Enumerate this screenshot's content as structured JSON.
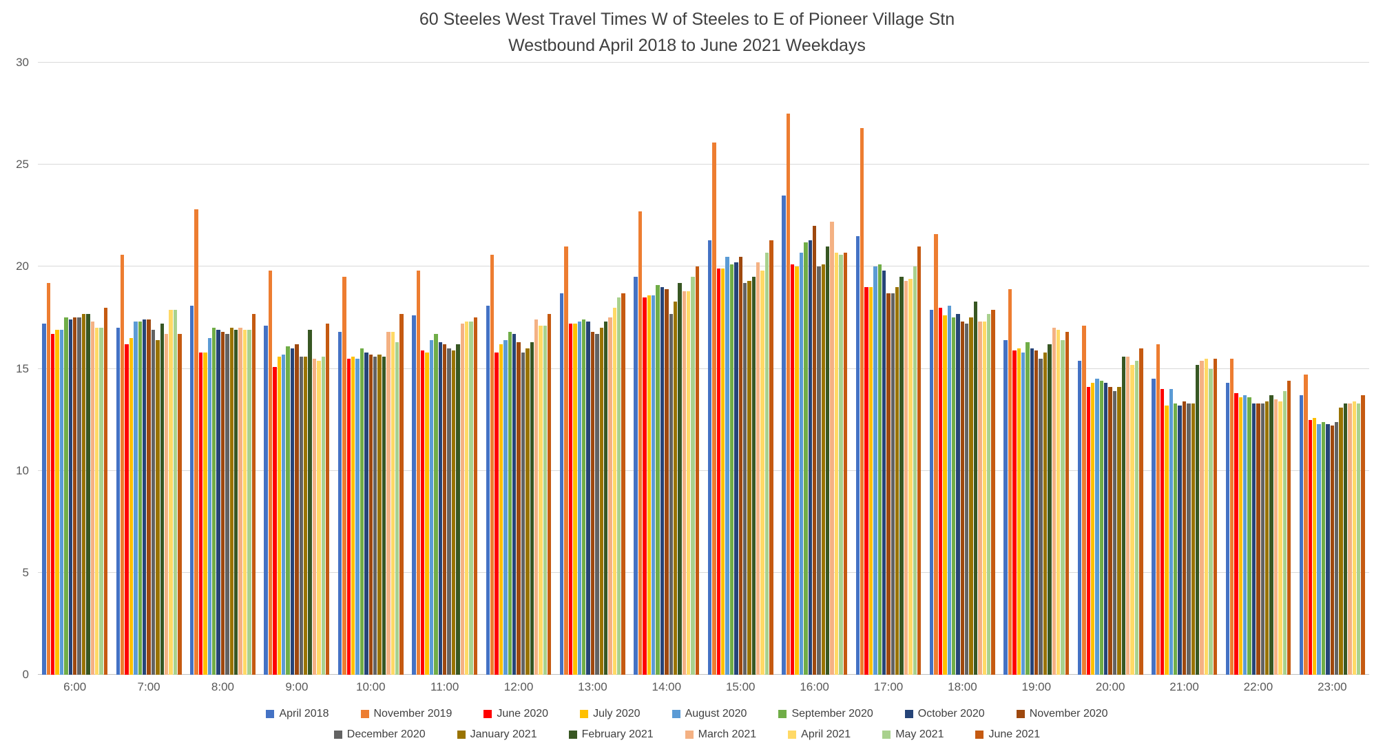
{
  "title": {
    "line1": "60 Steeles West Travel Times W of Steeles to E of Pioneer Village Stn",
    "line2": "Westbound April 2018 to June 2021 Weekdays"
  },
  "chart_data": {
    "type": "bar",
    "title": "60 Steeles West Travel Times W of Steeles to E of Pioneer Village Stn Westbound April 2018 to June 2021 Weekdays",
    "xlabel": "",
    "ylabel": "",
    "ylim": [
      0,
      30
    ],
    "ytick_step": 5,
    "grid": true,
    "legend_position": "bottom",
    "legend_rows": [
      8,
      7
    ],
    "categories": [
      "6:00",
      "7:00",
      "8:00",
      "9:00",
      "10:00",
      "11:00",
      "12:00",
      "13:00",
      "14:00",
      "15:00",
      "16:00",
      "17:00",
      "18:00",
      "19:00",
      "20:00",
      "21:00",
      "22:00",
      "23:00"
    ],
    "series": [
      {
        "name": "April 2018",
        "color": "#4472C4",
        "values": [
          17.2,
          17.0,
          18.1,
          17.1,
          16.8,
          17.6,
          18.1,
          18.7,
          19.5,
          21.3,
          23.5,
          21.5,
          17.9,
          16.4,
          15.4,
          14.5,
          14.3,
          13.7
        ]
      },
      {
        "name": "November 2019",
        "color": "#ED7D31",
        "values": [
          19.2,
          20.6,
          22.8,
          19.8,
          19.5,
          19.8,
          20.6,
          21.0,
          22.7,
          26.1,
          27.5,
          26.8,
          21.6,
          18.9,
          17.1,
          16.2,
          15.5,
          14.7
        ]
      },
      {
        "name": "June 2020",
        "color": "#FF0000",
        "values": [
          16.7,
          16.2,
          15.8,
          15.1,
          15.5,
          15.9,
          15.8,
          17.2,
          18.5,
          19.9,
          20.1,
          19.0,
          18.0,
          15.9,
          14.1,
          14.0,
          13.8,
          12.5
        ]
      },
      {
        "name": "July 2020",
        "color": "#FFC000",
        "values": [
          16.9,
          16.5,
          15.8,
          15.6,
          15.6,
          15.8,
          16.2,
          17.2,
          18.6,
          19.9,
          20.0,
          19.0,
          17.6,
          16.0,
          14.3,
          13.2,
          13.6,
          12.6
        ]
      },
      {
        "name": "August 2020",
        "color": "#5B9BD5",
        "values": [
          16.9,
          17.3,
          16.5,
          15.7,
          15.5,
          16.4,
          16.4,
          17.3,
          18.6,
          20.5,
          20.7,
          20.0,
          18.1,
          15.8,
          14.5,
          14.0,
          13.7,
          12.3
        ]
      },
      {
        "name": "September 2020",
        "color": "#70AD47",
        "values": [
          17.5,
          17.3,
          17.0,
          16.1,
          16.0,
          16.7,
          16.8,
          17.4,
          19.1,
          20.1,
          21.2,
          20.1,
          17.5,
          16.3,
          14.4,
          13.3,
          13.6,
          12.4
        ]
      },
      {
        "name": "October 2020",
        "color": "#264478",
        "values": [
          17.4,
          17.4,
          16.9,
          16.0,
          15.8,
          16.3,
          16.7,
          17.3,
          19.0,
          20.2,
          21.3,
          19.8,
          17.7,
          16.0,
          14.3,
          13.2,
          13.3,
          12.3
        ]
      },
      {
        "name": "November 2020",
        "color": "#9E480E",
        "values": [
          17.5,
          17.4,
          16.8,
          16.2,
          15.7,
          16.2,
          16.3,
          16.8,
          18.9,
          20.5,
          22.0,
          18.7,
          17.3,
          15.9,
          14.1,
          13.4,
          13.3,
          12.2
        ]
      },
      {
        "name": "December 2020",
        "color": "#636363",
        "values": [
          17.5,
          16.9,
          16.7,
          15.6,
          15.6,
          16.0,
          15.8,
          16.7,
          17.7,
          19.2,
          20.0,
          18.7,
          17.2,
          15.5,
          13.9,
          13.3,
          13.3,
          12.4
        ]
      },
      {
        "name": "January 2021",
        "color": "#997300",
        "values": [
          17.7,
          16.4,
          17.0,
          15.6,
          15.7,
          15.9,
          16.0,
          17.0,
          18.3,
          19.3,
          20.1,
          19.0,
          17.5,
          15.8,
          14.1,
          13.3,
          13.4,
          13.1
        ]
      },
      {
        "name": "February 2021",
        "color": "#385723",
        "values": [
          17.7,
          17.2,
          16.9,
          16.9,
          15.6,
          16.2,
          16.3,
          17.3,
          19.2,
          19.5,
          21.0,
          19.5,
          18.3,
          16.2,
          15.6,
          15.2,
          13.7,
          13.3
        ]
      },
      {
        "name": "March 2021",
        "color": "#F4B183",
        "values": [
          17.3,
          16.7,
          17.0,
          15.5,
          16.8,
          17.2,
          17.4,
          17.5,
          18.8,
          20.2,
          22.2,
          19.3,
          17.3,
          17.0,
          15.6,
          15.4,
          13.5,
          13.3
        ]
      },
      {
        "name": "April 2021",
        "color": "#FFD966",
        "values": [
          17.0,
          17.9,
          16.9,
          15.4,
          16.8,
          17.3,
          17.1,
          18.0,
          18.8,
          19.8,
          20.7,
          19.4,
          17.3,
          16.9,
          15.2,
          15.5,
          13.4,
          13.4
        ]
      },
      {
        "name": "May 2021",
        "color": "#A9D18E",
        "values": [
          17.0,
          17.9,
          16.9,
          15.6,
          16.3,
          17.3,
          17.1,
          18.5,
          19.5,
          20.7,
          20.6,
          20.0,
          17.7,
          16.4,
          15.4,
          15.0,
          13.9,
          13.3
        ]
      },
      {
        "name": "June 2021",
        "color": "#C55A11",
        "values": [
          18.0,
          16.7,
          17.7,
          17.2,
          17.7,
          17.5,
          17.7,
          18.7,
          20.0,
          21.3,
          20.7,
          21.0,
          17.9,
          16.8,
          16.0,
          15.5,
          14.4,
          13.7
        ]
      }
    ]
  }
}
